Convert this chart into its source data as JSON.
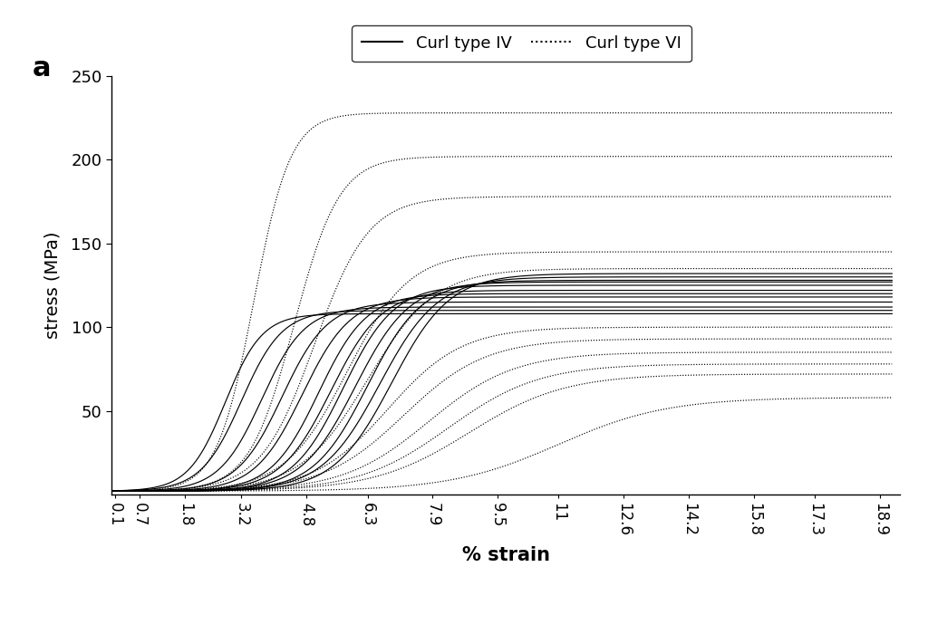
{
  "title_label": "a",
  "xlabel": "% strain",
  "ylabel": "stress (MPa)",
  "ylim": [
    0,
    250
  ],
  "yticks": [
    50,
    100,
    150,
    200,
    250
  ],
  "xtick_labels": [
    "0.1",
    "0.7",
    "1.8",
    "3.2",
    "4.8",
    "6.3",
    "7.9",
    "9.5",
    "11",
    "12.6",
    "14.2",
    "15.8",
    "17.3",
    "18.9"
  ],
  "xtick_values": [
    0.1,
    0.7,
    1.8,
    3.2,
    4.8,
    6.3,
    7.9,
    9.5,
    11.0,
    12.6,
    14.2,
    15.8,
    17.3,
    18.9
  ],
  "legend_solid": "Curl type IV",
  "legend_dotted": "Curl type VI",
  "background_color": "#ffffff",
  "curl_IV_params": [
    {
      "x_mid": 2.8,
      "y_low": 2,
      "y_high": 108,
      "steepness": 2.2
    },
    {
      "x_mid": 3.2,
      "y_low": 2,
      "y_high": 110,
      "steepness": 2.0
    },
    {
      "x_mid": 3.7,
      "y_low": 2,
      "y_high": 112,
      "steepness": 1.9
    },
    {
      "x_mid": 4.2,
      "y_low": 2,
      "y_high": 115,
      "steepness": 1.8
    },
    {
      "x_mid": 4.7,
      "y_low": 2,
      "y_high": 118,
      "steepness": 1.7
    },
    {
      "x_mid": 5.1,
      "y_low": 2,
      "y_high": 120,
      "steepness": 1.7
    },
    {
      "x_mid": 5.4,
      "y_low": 2,
      "y_high": 122,
      "steepness": 1.6
    },
    {
      "x_mid": 5.7,
      "y_low": 2,
      "y_high": 125,
      "steepness": 1.6
    },
    {
      "x_mid": 6.0,
      "y_low": 2,
      "y_high": 127,
      "steepness": 1.5
    },
    {
      "x_mid": 6.3,
      "y_low": 2,
      "y_high": 128,
      "steepness": 1.5
    },
    {
      "x_mid": 6.6,
      "y_low": 2,
      "y_high": 130,
      "steepness": 1.4
    },
    {
      "x_mid": 6.9,
      "y_low": 2,
      "y_high": 132,
      "steepness": 1.4
    }
  ],
  "curl_VI_params": [
    {
      "x_mid": 3.5,
      "y_low": 2,
      "y_high": 228,
      "steepness": 2.2
    },
    {
      "x_mid": 4.5,
      "y_low": 2,
      "y_high": 202,
      "steepness": 1.8
    },
    {
      "x_mid": 5.0,
      "y_low": 2,
      "y_high": 178,
      "steepness": 1.5
    },
    {
      "x_mid": 5.8,
      "y_low": 2,
      "y_high": 145,
      "steepness": 1.3
    },
    {
      "x_mid": 6.3,
      "y_low": 2,
      "y_high": 135,
      "steepness": 1.2
    },
    {
      "x_mid": 6.8,
      "y_low": 2,
      "y_high": 100,
      "steepness": 1.1
    },
    {
      "x_mid": 7.2,
      "y_low": 2,
      "y_high": 93,
      "steepness": 1.0
    },
    {
      "x_mid": 7.8,
      "y_low": 2,
      "y_high": 85,
      "steepness": 0.95
    },
    {
      "x_mid": 8.3,
      "y_low": 2,
      "y_high": 78,
      "steepness": 0.9
    },
    {
      "x_mid": 8.8,
      "y_low": 2,
      "y_high": 72,
      "steepness": 0.85
    },
    {
      "x_mid": 11.0,
      "y_low": 2,
      "y_high": 58,
      "steepness": 0.75
    }
  ]
}
